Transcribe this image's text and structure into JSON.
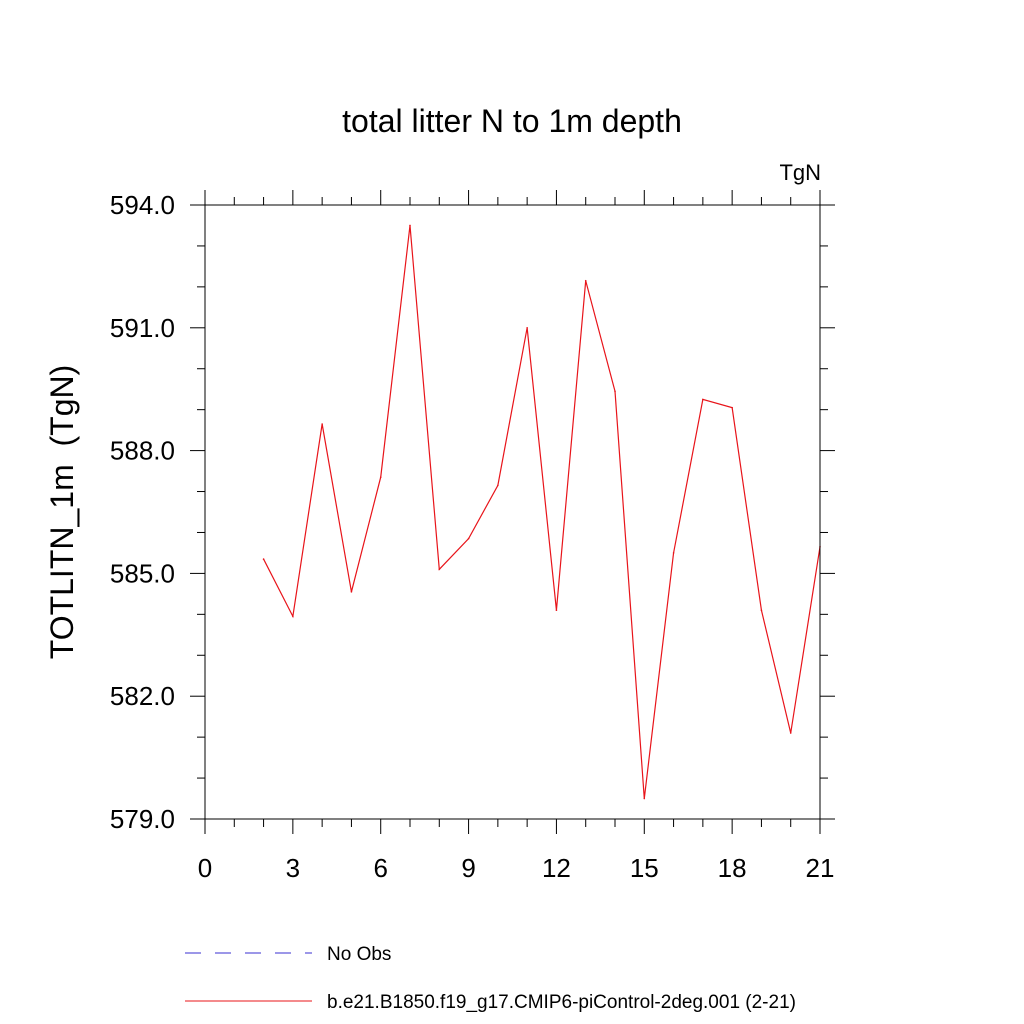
{
  "chart_data": {
    "type": "line",
    "title": "total litter N to 1m depth",
    "units_label": "TgN",
    "xlabel": "",
    "ylabel": "TOTLITN_1m  (TgN)",
    "xlim": [
      0,
      21
    ],
    "ylim": [
      579.0,
      594.0
    ],
    "x_ticks": [
      0,
      3,
      6,
      9,
      12,
      15,
      18,
      21
    ],
    "x_tick_labels": [
      "0",
      "3",
      "6",
      "9",
      "12",
      "15",
      "18",
      "21"
    ],
    "y_ticks": [
      579.0,
      582.0,
      585.0,
      588.0,
      591.0,
      594.0
    ],
    "y_tick_labels": [
      "579.0",
      "582.0",
      "585.0",
      "588.0",
      "591.0",
      "594.0"
    ],
    "y_minor_step": 1.0,
    "x_minor_step": 1,
    "legend_position": "bottom",
    "series": [
      {
        "name": "No Obs",
        "color": "#3a2fd0",
        "dash": "dashed",
        "x": [],
        "values": []
      },
      {
        "name": "b.e21.B1850.f19_g17.CMIP6-piControl-2deg.001 (2-21)",
        "color": "#e8141a",
        "dash": "solid",
        "x": [
          2,
          3,
          4,
          5,
          6,
          7,
          8,
          9,
          10,
          11,
          12,
          13,
          14,
          15,
          16,
          17,
          18,
          19,
          20,
          21
        ],
        "values": [
          585.35,
          583.95,
          588.65,
          584.55,
          587.35,
          593.5,
          585.1,
          585.85,
          587.15,
          591.0,
          584.1,
          592.15,
          589.45,
          579.5,
          585.5,
          589.25,
          589.05,
          584.1,
          581.1,
          585.65
        ]
      }
    ]
  }
}
